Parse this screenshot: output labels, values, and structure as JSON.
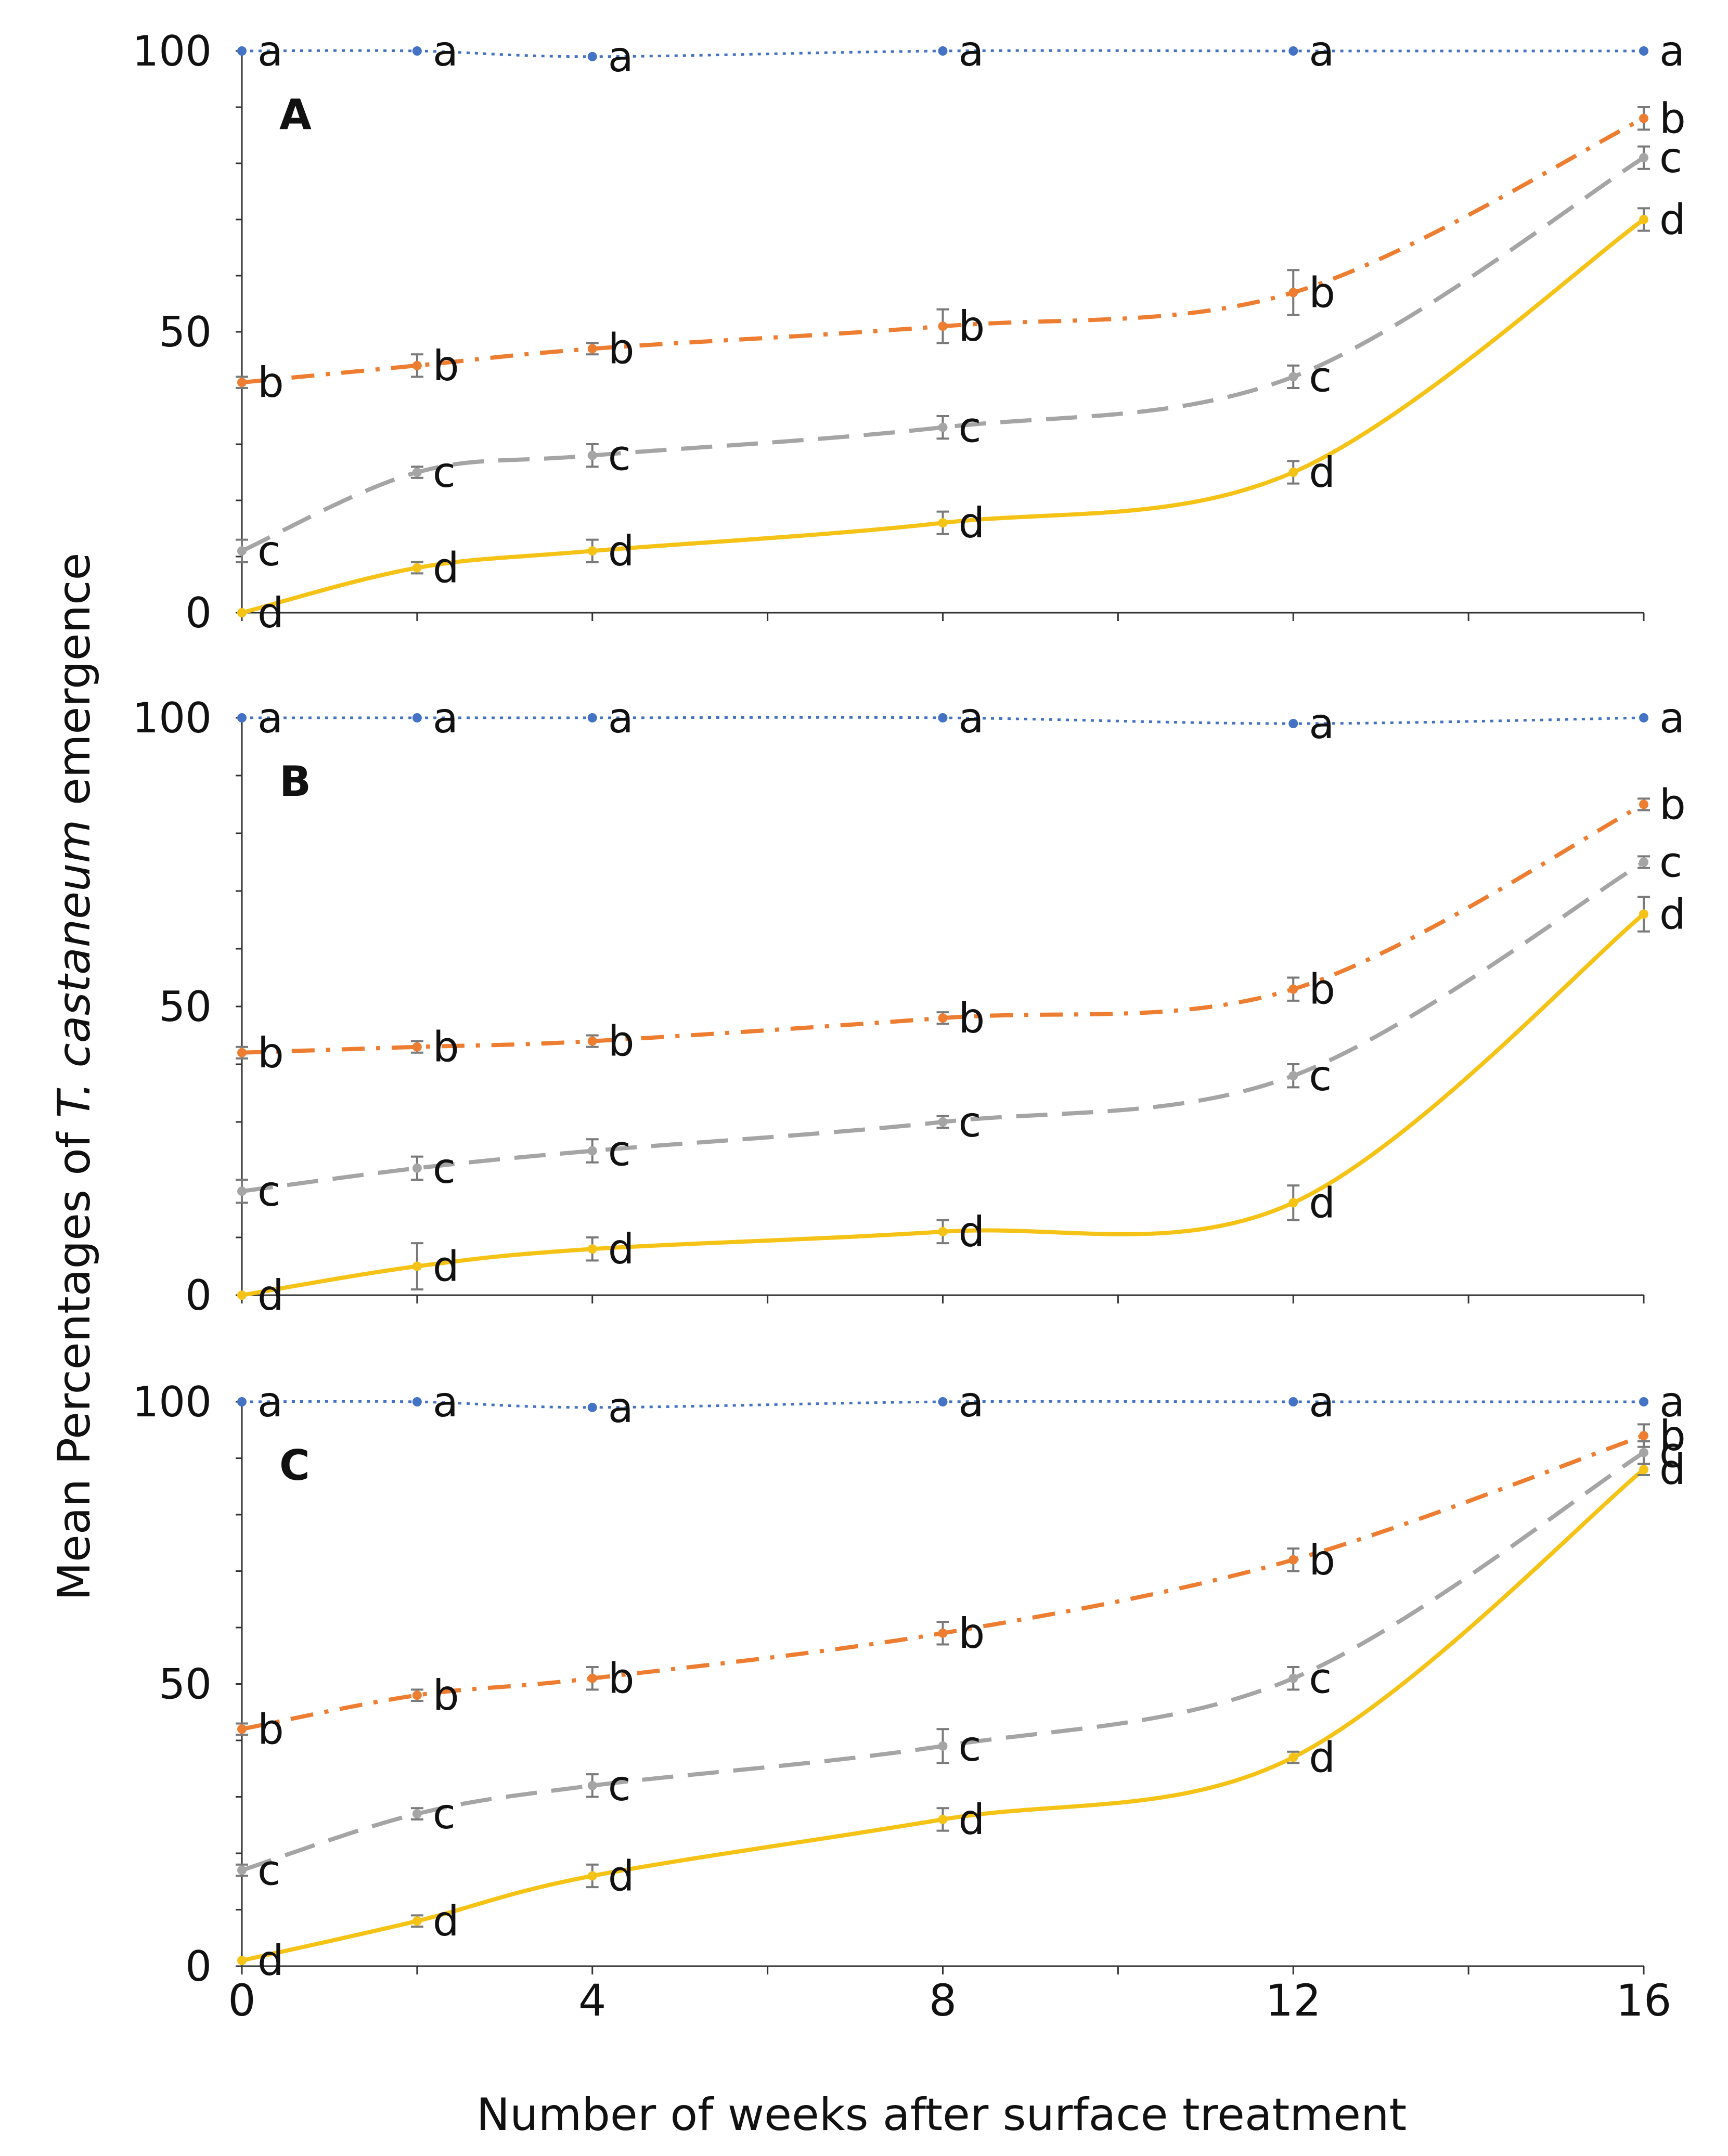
{
  "chart_data": {
    "type": "line",
    "ylabel_prefix": "Mean Percentages of ",
    "ylabel_species": "T. castaneum",
    "ylabel_suffix": " emergence",
    "xlabel": "Number of weeks after surface treatment",
    "x": [
      0,
      2,
      4,
      8,
      12,
      16
    ],
    "x_tick_labels": [
      "0",
      "4",
      "8",
      "12",
      "16"
    ],
    "x_tick_values": [
      0,
      4,
      8,
      12,
      16
    ],
    "y_tick_labels": [
      "0",
      "50",
      "100"
    ],
    "y_tick_values": [
      0,
      50,
      100
    ],
    "ylim": [
      0,
      100
    ],
    "xlim": [
      0,
      16
    ],
    "series_styles": [
      {
        "color": "#4472C4",
        "dash": "dotted"
      },
      {
        "color": "#ED7D31",
        "dash": "dashdot"
      },
      {
        "color": "#A5A5A5",
        "dash": "dashed"
      },
      {
        "color": "#F5C216",
        "dash": "solid"
      }
    ],
    "panels": [
      {
        "label": "A",
        "series": [
          {
            "values": [
              100,
              100,
              99,
              100,
              100,
              100
            ],
            "errors": [
              0,
              0,
              0,
              0,
              0,
              0
            ],
            "letters": [
              "a",
              "a",
              "a",
              "a",
              "a",
              "a"
            ]
          },
          {
            "values": [
              41,
              44,
              47,
              51,
              57,
              88
            ],
            "errors": [
              1,
              2,
              1,
              3,
              4,
              2
            ],
            "letters": [
              "b",
              "b",
              "b",
              "b",
              "b",
              "b"
            ]
          },
          {
            "values": [
              11,
              25,
              28,
              33,
              42,
              81
            ],
            "errors": [
              2,
              1,
              2,
              2,
              2,
              2
            ],
            "letters": [
              "c",
              "c",
              "c",
              "c",
              "c",
              "c"
            ]
          },
          {
            "values": [
              0,
              8,
              11,
              16,
              25,
              70
            ],
            "errors": [
              0,
              1,
              2,
              2,
              2,
              2
            ],
            "letters": [
              "d",
              "d",
              "d",
              "d",
              "d",
              "d"
            ]
          }
        ]
      },
      {
        "label": "B",
        "series": [
          {
            "values": [
              100,
              100,
              100,
              100,
              99,
              100
            ],
            "errors": [
              0,
              0,
              0,
              0,
              0,
              0
            ],
            "letters": [
              "a",
              "a",
              "a",
              "a",
              "a",
              "a"
            ]
          },
          {
            "values": [
              42,
              43,
              44,
              48,
              53,
              85
            ],
            "errors": [
              1,
              1,
              1,
              1,
              2,
              1
            ],
            "letters": [
              "b",
              "b",
              "b",
              "b",
              "b",
              "b"
            ]
          },
          {
            "values": [
              18,
              22,
              25,
              30,
              38,
              75
            ],
            "errors": [
              2,
              2,
              2,
              1,
              2,
              1
            ],
            "letters": [
              "c",
              "c",
              "c",
              "c",
              "c",
              "c"
            ]
          },
          {
            "values": [
              0,
              5,
              8,
              11,
              16,
              66
            ],
            "errors": [
              0,
              4,
              2,
              2,
              3,
              3
            ],
            "letters": [
              "d",
              "d",
              "d",
              "d",
              "d",
              "d"
            ]
          }
        ]
      },
      {
        "label": "C",
        "series": [
          {
            "values": [
              100,
              100,
              99,
              100,
              100,
              100
            ],
            "errors": [
              0,
              0,
              0,
              0,
              0,
              0
            ],
            "letters": [
              "a",
              "a",
              "a",
              "a",
              "a",
              "a"
            ]
          },
          {
            "values": [
              42,
              48,
              51,
              59,
              72,
              94
            ],
            "errors": [
              1,
              1,
              2,
              2,
              2,
              2
            ],
            "letters": [
              "b",
              "b",
              "b",
              "b",
              "b",
              "b"
            ]
          },
          {
            "values": [
              17,
              27,
              32,
              39,
              51,
              91
            ],
            "errors": [
              1,
              1,
              2,
              3,
              2,
              2
            ],
            "letters": [
              "c",
              "c",
              "c",
              "c",
              "c",
              "c"
            ]
          },
          {
            "values": [
              1,
              8,
              16,
              26,
              37,
              88
            ],
            "errors": [
              0,
              1,
              2,
              2,
              1,
              1
            ],
            "letters": [
              "d",
              "d",
              "d",
              "d",
              "d",
              "d"
            ]
          }
        ]
      }
    ]
  }
}
